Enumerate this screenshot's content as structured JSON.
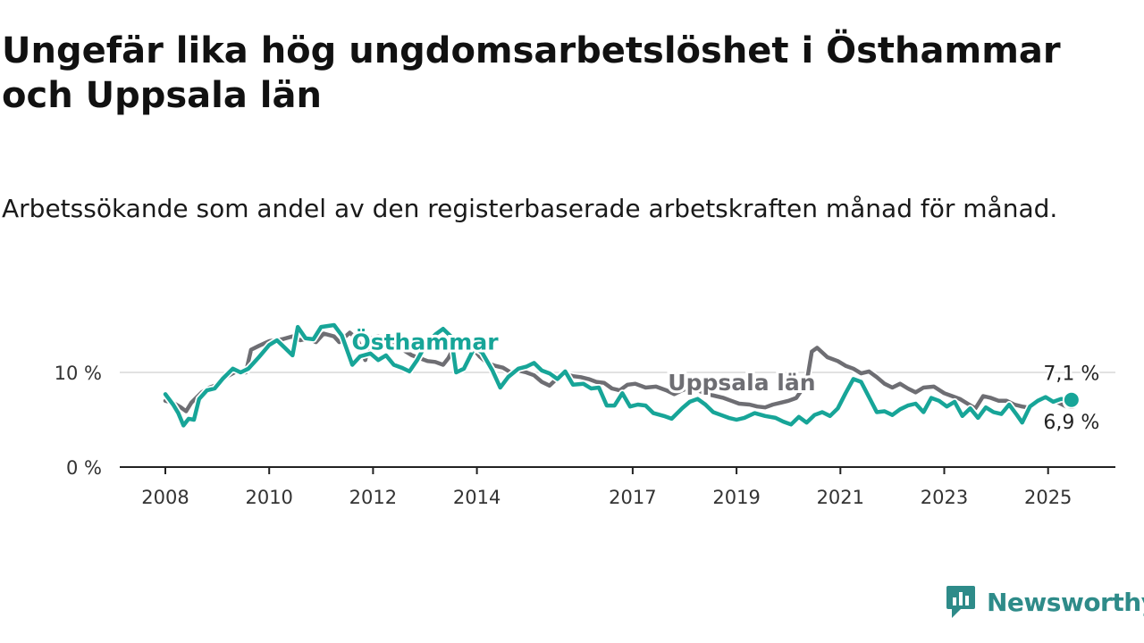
{
  "title": "Ungefär lika hög ungdomsarbetslöshet i Östhammar och Uppsala län",
  "subtitle": "Arbetssökande som andel av den registerbaserade arbetskraften månad för månad.",
  "brand": {
    "name": "Newsworthy",
    "logo_icon": "newsworthy-logo-icon",
    "color": "#2e8b89"
  },
  "chart_data": {
    "type": "line",
    "title": "Ungefär lika hög ungdomsarbetslöshet i Östhammar och Uppsala län",
    "subtitle": "Arbetssökande som andel av den registerbaserade arbetskraften månad för månad.",
    "xlabel": "",
    "ylabel": "",
    "x_range": [
      2007.8,
      2026.4
    ],
    "ylim": [
      0,
      18
    ],
    "y_ticks": [
      {
        "value": 0,
        "label": "0 %"
      },
      {
        "value": 10,
        "label": "10 %"
      }
    ],
    "x_ticks": [
      {
        "value": 2008,
        "label": "2008"
      },
      {
        "value": 2010,
        "label": "2010"
      },
      {
        "value": 2012,
        "label": "2012"
      },
      {
        "value": 2014,
        "label": "2014"
      },
      {
        "value": 2017,
        "label": "2017"
      },
      {
        "value": 2019,
        "label": "2019"
      },
      {
        "value": 2021,
        "label": "2021"
      },
      {
        "value": 2023,
        "label": "2023"
      },
      {
        "value": 2025,
        "label": "2025"
      }
    ],
    "grid": "horizontal",
    "series": [
      {
        "name": "Uppsala län",
        "color": "#6e6e73",
        "end_label": "6,9 %",
        "points": [
          [
            2008.0,
            7.0
          ],
          [
            2008.15,
            6.8
          ],
          [
            2008.3,
            6.3
          ],
          [
            2008.4,
            5.9
          ],
          [
            2008.5,
            6.8
          ],
          [
            2008.7,
            7.9
          ],
          [
            2008.85,
            8.4
          ],
          [
            2009.0,
            8.7
          ],
          [
            2009.2,
            9.6
          ],
          [
            2009.4,
            10.2
          ],
          [
            2009.55,
            10.0
          ],
          [
            2009.65,
            12.4
          ],
          [
            2009.8,
            12.8
          ],
          [
            2010.0,
            13.3
          ],
          [
            2010.25,
            13.5
          ],
          [
            2010.45,
            13.8
          ],
          [
            2010.6,
            13.4
          ],
          [
            2010.75,
            13.6
          ],
          [
            2010.9,
            13.2
          ],
          [
            2011.05,
            14.1
          ],
          [
            2011.25,
            13.8
          ],
          [
            2011.35,
            13.2
          ],
          [
            2011.55,
            14.2
          ],
          [
            2011.7,
            13.5
          ],
          [
            2011.85,
            11.3
          ],
          [
            2011.95,
            13.6
          ],
          [
            2012.1,
            13.8
          ],
          [
            2012.25,
            13.2
          ],
          [
            2012.45,
            13.1
          ],
          [
            2012.6,
            12.3
          ],
          [
            2012.75,
            11.8
          ],
          [
            2012.9,
            11.5
          ],
          [
            2013.05,
            11.2
          ],
          [
            2013.2,
            11.1
          ],
          [
            2013.35,
            10.8
          ],
          [
            2013.45,
            11.5
          ],
          [
            2013.6,
            13.1
          ],
          [
            2013.75,
            13.2
          ],
          [
            2013.9,
            12.7
          ],
          [
            2014.05,
            11.7
          ],
          [
            2014.2,
            11.0
          ],
          [
            2014.35,
            10.7
          ],
          [
            2014.5,
            10.5
          ],
          [
            2014.65,
            10.0
          ],
          [
            2014.8,
            10.2
          ],
          [
            2014.95,
            10.0
          ],
          [
            2015.1,
            9.7
          ],
          [
            2015.25,
            9.0
          ],
          [
            2015.4,
            8.6
          ],
          [
            2015.55,
            9.4
          ],
          [
            2015.7,
            9.8
          ],
          [
            2015.85,
            9.6
          ],
          [
            2016.0,
            9.5
          ],
          [
            2016.15,
            9.3
          ],
          [
            2016.3,
            9.0
          ],
          [
            2016.45,
            8.9
          ],
          [
            2016.6,
            8.3
          ],
          [
            2016.75,
            8.1
          ],
          [
            2016.9,
            8.7
          ],
          [
            2017.05,
            8.8
          ],
          [
            2017.25,
            8.4
          ],
          [
            2017.45,
            8.5
          ],
          [
            2017.65,
            8.1
          ],
          [
            2017.8,
            7.7
          ],
          [
            2017.95,
            8.1
          ],
          [
            2018.15,
            8.5
          ],
          [
            2018.3,
            8.0
          ],
          [
            2018.45,
            7.7
          ],
          [
            2018.6,
            7.5
          ],
          [
            2018.75,
            7.3
          ],
          [
            2018.9,
            7.0
          ],
          [
            2019.05,
            6.7
          ],
          [
            2019.25,
            6.6
          ],
          [
            2019.4,
            6.4
          ],
          [
            2019.55,
            6.3
          ],
          [
            2019.7,
            6.6
          ],
          [
            2019.85,
            6.8
          ],
          [
            2020.0,
            7.0
          ],
          [
            2020.15,
            7.3
          ],
          [
            2020.35,
            8.9
          ],
          [
            2020.45,
            12.2
          ],
          [
            2020.55,
            12.6
          ],
          [
            2020.75,
            11.6
          ],
          [
            2020.95,
            11.2
          ],
          [
            2021.1,
            10.7
          ],
          [
            2021.25,
            10.4
          ],
          [
            2021.4,
            9.9
          ],
          [
            2021.55,
            10.1
          ],
          [
            2021.7,
            9.5
          ],
          [
            2021.85,
            8.8
          ],
          [
            2022.0,
            8.4
          ],
          [
            2022.15,
            8.8
          ],
          [
            2022.3,
            8.3
          ],
          [
            2022.45,
            7.9
          ],
          [
            2022.6,
            8.4
          ],
          [
            2022.8,
            8.5
          ],
          [
            2023.0,
            7.8
          ],
          [
            2023.15,
            7.5
          ],
          [
            2023.3,
            7.2
          ],
          [
            2023.45,
            6.7
          ],
          [
            2023.6,
            6.2
          ],
          [
            2023.75,
            7.5
          ],
          [
            2023.9,
            7.3
          ],
          [
            2024.05,
            7.0
          ],
          [
            2024.2,
            7.0
          ],
          [
            2024.35,
            6.6
          ],
          [
            2024.5,
            6.4
          ],
          [
            2024.6,
            6.3
          ],
          [
            2024.75,
            6.9
          ],
          [
            2024.9,
            7.3
          ],
          [
            2025.05,
            7.0
          ],
          [
            2025.2,
            6.8
          ],
          [
            2025.35,
            6.4
          ],
          [
            2025.45,
            6.9
          ]
        ]
      },
      {
        "name": "Östhammar",
        "color": "#17a598",
        "end_label": "7,1 %",
        "points": [
          [
            2008.0,
            7.7
          ],
          [
            2008.15,
            6.6
          ],
          [
            2008.25,
            5.7
          ],
          [
            2008.35,
            4.4
          ],
          [
            2008.45,
            5.1
          ],
          [
            2008.55,
            5.0
          ],
          [
            2008.65,
            7.2
          ],
          [
            2008.8,
            8.1
          ],
          [
            2008.95,
            8.3
          ],
          [
            2009.1,
            9.3
          ],
          [
            2009.3,
            10.4
          ],
          [
            2009.45,
            10.0
          ],
          [
            2009.6,
            10.4
          ],
          [
            2009.8,
            11.6
          ],
          [
            2010.0,
            12.9
          ],
          [
            2010.15,
            13.4
          ],
          [
            2010.3,
            12.6
          ],
          [
            2010.45,
            11.8
          ],
          [
            2010.55,
            14.8
          ],
          [
            2010.7,
            13.6
          ],
          [
            2010.85,
            13.5
          ],
          [
            2011.0,
            14.8
          ],
          [
            2011.25,
            15.0
          ],
          [
            2011.4,
            13.9
          ],
          [
            2011.6,
            10.8
          ],
          [
            2011.75,
            11.7
          ],
          [
            2011.95,
            12.0
          ],
          [
            2012.1,
            11.3
          ],
          [
            2012.25,
            11.8
          ],
          [
            2012.4,
            10.8
          ],
          [
            2012.55,
            10.5
          ],
          [
            2012.7,
            10.1
          ],
          [
            2012.85,
            11.3
          ],
          [
            2013.0,
            12.8
          ],
          [
            2013.2,
            14.0
          ],
          [
            2013.35,
            14.6
          ],
          [
            2013.5,
            13.8
          ],
          [
            2013.6,
            10.0
          ],
          [
            2013.75,
            10.4
          ],
          [
            2013.95,
            12.6
          ],
          [
            2014.1,
            12.1
          ],
          [
            2014.3,
            10.2
          ],
          [
            2014.45,
            8.4
          ],
          [
            2014.6,
            9.5
          ],
          [
            2014.8,
            10.4
          ],
          [
            2014.95,
            10.6
          ],
          [
            2015.1,
            11.0
          ],
          [
            2015.25,
            10.2
          ],
          [
            2015.4,
            9.9
          ],
          [
            2015.55,
            9.3
          ],
          [
            2015.7,
            10.1
          ],
          [
            2015.85,
            8.7
          ],
          [
            2016.05,
            8.8
          ],
          [
            2016.2,
            8.3
          ],
          [
            2016.35,
            8.4
          ],
          [
            2016.5,
            6.5
          ],
          [
            2016.65,
            6.5
          ],
          [
            2016.8,
            7.8
          ],
          [
            2016.95,
            6.4
          ],
          [
            2017.1,
            6.6
          ],
          [
            2017.25,
            6.5
          ],
          [
            2017.4,
            5.7
          ],
          [
            2017.6,
            5.4
          ],
          [
            2017.75,
            5.1
          ],
          [
            2017.95,
            6.2
          ],
          [
            2018.1,
            6.9
          ],
          [
            2018.25,
            7.2
          ],
          [
            2018.4,
            6.6
          ],
          [
            2018.55,
            5.8
          ],
          [
            2018.7,
            5.5
          ],
          [
            2018.85,
            5.2
          ],
          [
            2019.0,
            5.0
          ],
          [
            2019.15,
            5.2
          ],
          [
            2019.35,
            5.7
          ],
          [
            2019.55,
            5.4
          ],
          [
            2019.75,
            5.2
          ],
          [
            2019.9,
            4.8
          ],
          [
            2020.05,
            4.5
          ],
          [
            2020.2,
            5.3
          ],
          [
            2020.35,
            4.7
          ],
          [
            2020.5,
            5.5
          ],
          [
            2020.65,
            5.8
          ],
          [
            2020.8,
            5.4
          ],
          [
            2020.95,
            6.2
          ],
          [
            2021.1,
            7.8
          ],
          [
            2021.25,
            9.3
          ],
          [
            2021.4,
            9.0
          ],
          [
            2021.55,
            7.4
          ],
          [
            2021.7,
            5.8
          ],
          [
            2021.85,
            5.9
          ],
          [
            2022.0,
            5.5
          ],
          [
            2022.15,
            6.1
          ],
          [
            2022.3,
            6.5
          ],
          [
            2022.45,
            6.7
          ],
          [
            2022.6,
            5.8
          ],
          [
            2022.75,
            7.3
          ],
          [
            2022.9,
            7.0
          ],
          [
            2023.05,
            6.4
          ],
          [
            2023.2,
            6.9
          ],
          [
            2023.35,
            5.4
          ],
          [
            2023.5,
            6.2
          ],
          [
            2023.65,
            5.2
          ],
          [
            2023.8,
            6.3
          ],
          [
            2023.95,
            5.8
          ],
          [
            2024.1,
            5.6
          ],
          [
            2024.25,
            6.6
          ],
          [
            2024.4,
            5.5
          ],
          [
            2024.5,
            4.7
          ],
          [
            2024.65,
            6.4
          ],
          [
            2024.8,
            7.0
          ],
          [
            2024.95,
            7.4
          ],
          [
            2025.1,
            6.9
          ],
          [
            2025.25,
            7.2
          ],
          [
            2025.45,
            7.1
          ]
        ]
      }
    ],
    "annotations": [
      {
        "series": "Östhammar",
        "text": "Östhammar",
        "at": [
          2013.0,
          12.4
        ]
      },
      {
        "series": "Uppsala län",
        "text": "Uppsala län",
        "at": [
          2019.1,
          8.1
        ]
      }
    ]
  }
}
